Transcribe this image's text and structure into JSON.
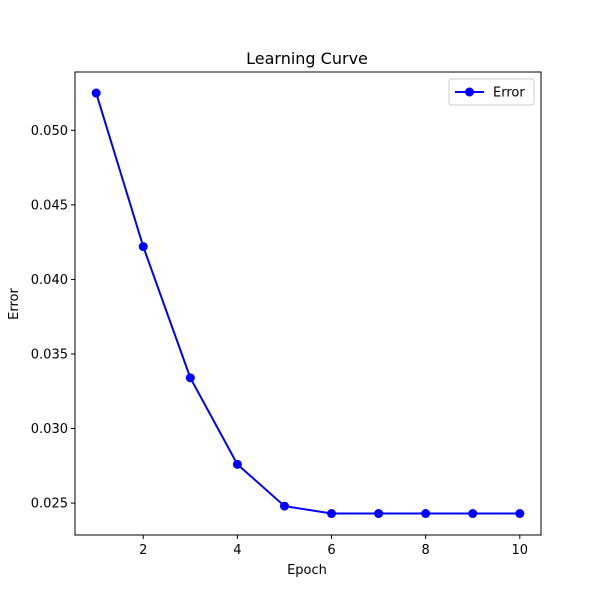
{
  "chart_data": {
    "type": "line",
    "title": "Learning Curve",
    "xlabel": "Epoch",
    "ylabel": "Error",
    "x": [
      1,
      2,
      3,
      4,
      5,
      6,
      7,
      8,
      9,
      10
    ],
    "series": [
      {
        "name": "Error",
        "color": "#0000ff",
        "marker": "circle",
        "values": [
          0.0525,
          0.0422,
          0.0334,
          0.0276,
          0.0248,
          0.0243,
          0.0243,
          0.0243,
          0.0243,
          0.0243
        ]
      }
    ],
    "xlim": [
      0.55,
      10.45
    ],
    "ylim": [
      0.02286,
      0.05391
    ],
    "xticks": [
      2,
      4,
      6,
      8,
      10
    ],
    "xtick_labels": [
      "2",
      "4",
      "6",
      "8",
      "10"
    ],
    "yticks": [
      0.025,
      0.03,
      0.035,
      0.04,
      0.045,
      0.05
    ],
    "ytick_labels": [
      "0.025",
      "0.030",
      "0.035",
      "0.040",
      "0.045",
      "0.050"
    ],
    "grid": false,
    "legend_position": "top-right"
  }
}
